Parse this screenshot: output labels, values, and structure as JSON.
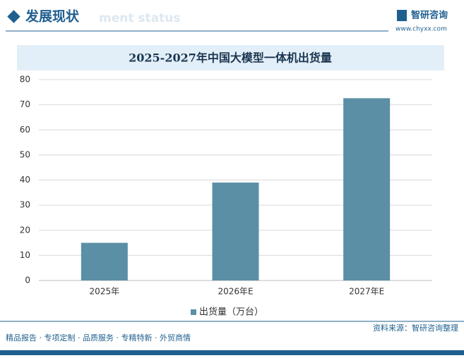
{
  "header": {
    "title": "发展现状",
    "watermark": "ment status",
    "logo_name": "智研咨询",
    "logo_url": "www.chyxx.com"
  },
  "chart_data": {
    "type": "bar",
    "title": "2025-2027年中国大模型一体机出货量",
    "categories": [
      "2025年",
      "2026年E",
      "2027年E"
    ],
    "series": [
      {
        "name": "出货量（万台）",
        "color": "#5b8fa6",
        "values": [
          15,
          39,
          72.6
        ]
      }
    ],
    "ylim": [
      0,
      80
    ],
    "yticks": [
      0,
      10,
      20,
      30,
      40,
      50,
      60,
      70,
      80
    ],
    "grid": true,
    "legend": "bottom"
  },
  "footer": {
    "left": "精品报告 · 专项定制 · 品质服务 · 专精特新 · 外贸商情",
    "source": "资料来源：智研咨询整理"
  }
}
